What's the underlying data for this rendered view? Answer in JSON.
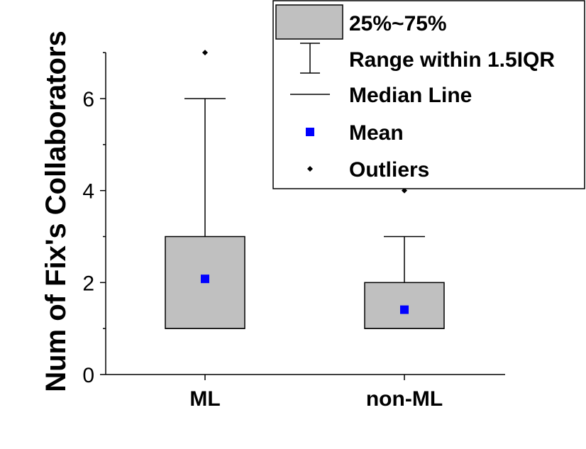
{
  "chart_data": {
    "type": "box",
    "ylabel": "Num of Fix's Collaborators",
    "xlabel": "",
    "ylim": [
      0,
      7
    ],
    "yticks": [
      0,
      2,
      4,
      6
    ],
    "categories": [
      "ML",
      "non-ML"
    ],
    "boxes": [
      {
        "category": "ML",
        "q1": 1,
        "median": 1,
        "q3": 3,
        "whisker_low": 1,
        "whisker_high": 6,
        "mean": 2.08,
        "outliers": [
          7
        ]
      },
      {
        "category": "non-ML",
        "q1": 1,
        "median": 1,
        "q3": 2,
        "whisker_low": 1,
        "whisker_high": 3,
        "mean": 1.41,
        "outliers": [
          4
        ]
      }
    ],
    "legend": {
      "position": "top-right",
      "items": [
        {
          "key": "box",
          "label": "25%~75%"
        },
        {
          "key": "range",
          "label": "Range within 1.5IQR"
        },
        {
          "key": "median",
          "label": "Median Line"
        },
        {
          "key": "mean",
          "label": "Mean"
        },
        {
          "key": "outliers",
          "label": "Outliers"
        }
      ]
    },
    "colors": {
      "box_fill": "#c0c0c0",
      "mean": "#0000ff",
      "line": "#000000"
    }
  }
}
